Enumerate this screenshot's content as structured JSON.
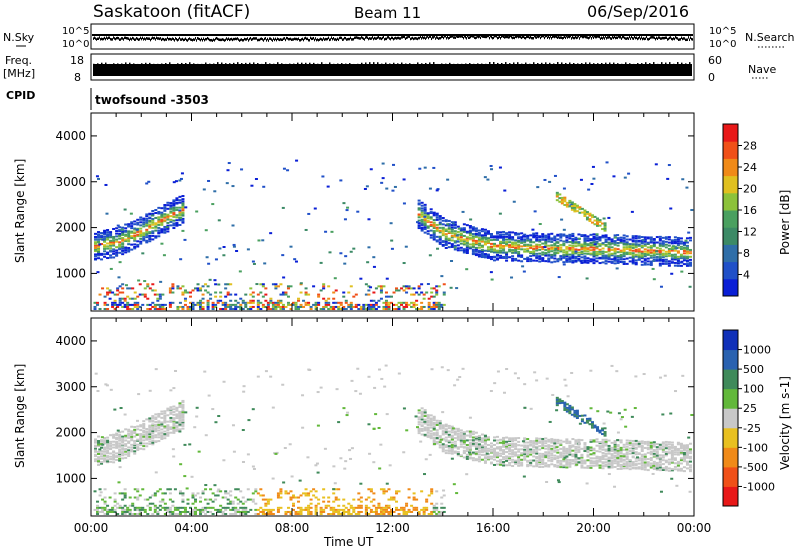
{
  "header": {
    "station": "Saskatoon (fitACF)",
    "beam": "Beam 11",
    "date": "06/Sep/2016"
  },
  "strips": {
    "nsky_label": "N.Sky",
    "nsky_top_tick": "10^5",
    "nsky_bottom_tick": "10^0",
    "nsearch_top_tick": "10^5",
    "nsearch_bottom_tick": "10^0",
    "nsearch_label": "N.Search",
    "freq_label": "Freq.",
    "freq_unit": "[MHz]",
    "freq_ticks": [
      "18",
      "8"
    ],
    "nave_ticks": [
      "60",
      "0"
    ],
    "nave_label": "Nave",
    "cpid_label": "CPID",
    "cpid_value": "twofsound -3503"
  },
  "chart_data": [
    {
      "type": "heatmap",
      "panel": "power",
      "ylabel": "Slant Range [km]",
      "xlabel": "Time UT",
      "x_ticks": [
        "00:00",
        "04:00",
        "08:00",
        "12:00",
        "16:00",
        "20:00",
        "00:00"
      ],
      "x_range_hours": [
        0,
        24
      ],
      "y_ticks": [
        1000,
        2000,
        3000,
        4000
      ],
      "ylim": [
        180,
        4500
      ],
      "colorbar": {
        "label": "Power [dB]",
        "ticks": [
          4,
          8,
          12,
          16,
          20,
          24,
          28
        ],
        "range": [
          0,
          30
        ],
        "colors": [
          "#0a1fd6",
          "#2050c8",
          "#2f6ea8",
          "#3c8a66",
          "#4aa060",
          "#8cc23a",
          "#e0c020",
          "#f08a18",
          "#f05018",
          "#e81818"
        ]
      },
      "features": [
        {
          "name": "morning backscatter band",
          "t": [
            0.0,
            1.0,
            2.0,
            3.0,
            3.7
          ],
          "range": [
            1600,
            1700,
            1950,
            2250,
            2450
          ]
        },
        {
          "name": "evening backscatter band",
          "t": [
            13.0,
            14.0,
            15.0,
            16.0,
            18.0,
            20.0,
            22.0,
            24.0
          ],
          "range": [
            2300,
            1900,
            1750,
            1620,
            1580,
            1560,
            1520,
            1480
          ]
        },
        {
          "name": "near-range echoes",
          "t": [
            0.0,
            14.0
          ],
          "range": [
            180,
            900
          ]
        }
      ]
    },
    {
      "type": "heatmap",
      "panel": "velocity",
      "ylabel": "Slant Range [km]",
      "xlabel": "Time UT",
      "x_ticks": [
        "00:00",
        "04:00",
        "08:00",
        "12:00",
        "16:00",
        "20:00",
        "00:00"
      ],
      "x_range_hours": [
        0,
        24
      ],
      "y_ticks": [
        1000,
        2000,
        3000,
        4000
      ],
      "ylim": [
        180,
        4500
      ],
      "colorbar": {
        "label": "Velocity [m s-1]",
        "ticks": [
          "1000",
          "500",
          "100",
          "25",
          "-25",
          "-100",
          "-500",
          "-1000"
        ],
        "colors": [
          "#1030b8",
          "#2a62b0",
          "#3f8a5a",
          "#62b83a",
          "#c8c8c8",
          "#e8c020",
          "#f08a18",
          "#f05018",
          "#e81818"
        ]
      },
      "features": [
        {
          "name": "ground scatter (grey) bands",
          "t": [
            0.0,
            3.7
          ],
          "range": [
            1600,
            2450
          ]
        },
        {
          "name": "ground scatter (grey) evening",
          "t": [
            13.0,
            24.0
          ],
          "range": [
            1480,
            2300
          ]
        },
        {
          "name": "negative velocity near-range",
          "t": [
            6.5,
            14.0
          ],
          "range": [
            180,
            700
          ]
        }
      ]
    }
  ]
}
